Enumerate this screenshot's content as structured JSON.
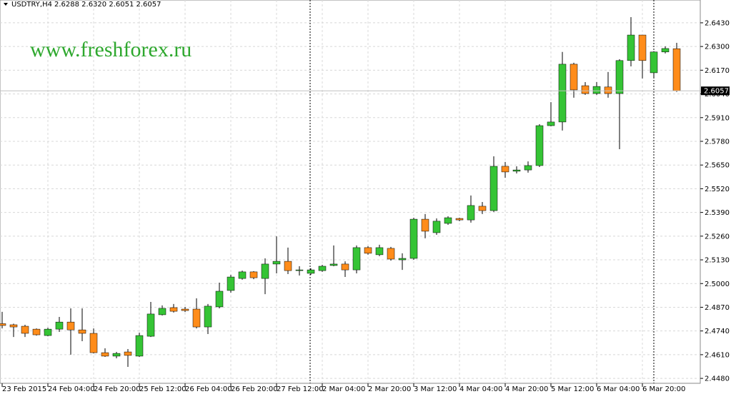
{
  "chart_data": {
    "type": "candlestick",
    "symbol": "USDTRY,H4",
    "quote": "2.6288 2.6320 2.6051 2.6057",
    "watermark": "www.freshforex.ru",
    "last_price": 2.6057,
    "up_color": "#35c435",
    "down_color": "#ff8c1a",
    "grid": true,
    "categories": [
      "23 Feb 2015",
      null,
      null,
      null,
      "24 Feb 04:00",
      null,
      null,
      null,
      "24 Feb 20:00",
      null,
      null,
      null,
      "25 Feb 12:00",
      null,
      null,
      null,
      "26 Feb 04:00",
      null,
      null,
      null,
      "26 Feb 20:00",
      null,
      null,
      null,
      "27 Feb 12:00",
      null,
      null,
      null,
      "2 Mar 04:00",
      null,
      null,
      null,
      "2 Mar 20:00",
      null,
      null,
      null,
      "3 Mar 12:00",
      null,
      null,
      null,
      "4 Mar 04:00",
      null,
      null,
      null,
      "4 Mar 20:00",
      null,
      null,
      null,
      "5 Mar 12:00",
      null,
      null,
      null,
      "6 Mar 04:00",
      null,
      null,
      null,
      "6 Mar 20:00",
      null,
      null,
      null
    ],
    "open": [
      2.478,
      2.4774,
      2.4766,
      2.475,
      2.4715,
      2.475,
      2.4789,
      2.4746,
      2.4727,
      2.4621,
      2.4602,
      2.4625,
      2.4602,
      2.4711,
      2.4829,
      2.4868,
      2.486,
      2.486,
      2.4762,
      2.4872,
      2.4962,
      2.5028,
      2.5064,
      2.5028,
      2.5107,
      2.5122,
      2.5071,
      2.5056,
      2.5071,
      2.5099,
      2.5107,
      2.5075,
      2.5197,
      2.5158,
      2.5193,
      2.513,
      2.5138,
      2.5353,
      2.5279,
      2.533,
      2.5357,
      2.5349,
      2.5424,
      2.54,
      2.5643,
      2.5616,
      2.5623,
      2.5647,
      2.5866,
      2.5886,
      2.6203,
      2.6085,
      2.6042,
      2.6078,
      2.6042,
      2.6223,
      2.6363,
      2.6156,
      2.627,
      2.6288
    ],
    "high": [
      2.4845,
      2.478,
      2.4774,
      2.4754,
      2.4758,
      2.4817,
      2.4864,
      2.4864,
      2.4754,
      2.4645,
      2.4625,
      2.4641,
      2.4731,
      2.4899,
      2.488,
      2.4888,
      2.4872,
      2.4919,
      2.4888,
      2.5005,
      2.5048,
      2.5071,
      2.5068,
      2.5138,
      2.5259,
      2.5197,
      2.5095,
      2.5083,
      2.5103,
      2.5209,
      2.5122,
      2.5209,
      2.5205,
      2.5213,
      2.5201,
      2.5166,
      2.5361,
      2.5381,
      2.5357,
      2.5369,
      2.5361,
      2.5483,
      2.5447,
      2.5698,
      2.5667,
      2.5643,
      2.567,
      2.5874,
      2.5995,
      2.627,
      2.6211,
      2.6105,
      2.6105,
      2.616,
      2.623,
      2.6461,
      2.6363,
      2.6274,
      2.6301,
      2.632
    ],
    "low": [
      2.4754,
      2.4707,
      2.4707,
      2.4715,
      2.4711,
      2.4735,
      2.461,
      2.4684,
      2.4617,
      2.4598,
      2.459,
      2.4543,
      2.4598,
      2.4707,
      2.4825,
      2.4841,
      2.4844,
      2.4754,
      2.4723,
      2.4864,
      2.495,
      2.5021,
      2.5024,
      2.4942,
      2.5056,
      2.5052,
      2.5044,
      2.5048,
      2.5064,
      2.5095,
      2.5036,
      2.5056,
      2.5158,
      2.515,
      2.5126,
      2.5075,
      2.513,
      2.5248,
      2.5267,
      2.5322,
      2.5342,
      2.5334,
      2.5381,
      2.5393,
      2.558,
      2.5604,
      2.5608,
      2.5639,
      2.5862,
      2.5839,
      2.6019,
      2.6035,
      2.6035,
      2.6019,
      2.5737,
      2.6191,
      2.6125,
      2.6132,
      2.6262,
      2.6051
    ],
    "close": [
      2.477,
      2.4762,
      2.4727,
      2.4719,
      2.475,
      2.4789,
      2.4746,
      2.4727,
      2.4621,
      2.4602,
      2.4617,
      2.4606,
      2.4715,
      2.4833,
      2.4864,
      2.4848,
      2.4852,
      2.4762,
      2.4876,
      2.4958,
      2.5036,
      2.5064,
      2.5032,
      2.5107,
      2.5122,
      2.5071,
      2.5075,
      2.5075,
      2.5095,
      2.5107,
      2.5075,
      2.5197,
      2.5166,
      2.5197,
      2.5134,
      2.5138,
      2.5353,
      2.5287,
      2.5342,
      2.5361,
      2.5349,
      2.5428,
      2.54,
      2.5643,
      2.5612,
      2.5623,
      2.5647,
      2.5866,
      2.5886,
      2.6203,
      2.6062,
      2.6042,
      2.6081,
      2.6042,
      2.6223,
      2.6363,
      2.6223,
      2.627,
      2.6289,
      2.6057
    ],
    "ylim": [
      2.4453,
      2.6555
    ],
    "yticks": [
      {
        "value": 2.448,
        "label": "2.4480"
      },
      {
        "value": 2.461,
        "label": "2.4610"
      },
      {
        "value": 2.474,
        "label": "2.4740"
      },
      {
        "value": 2.487,
        "label": "2.4870"
      },
      {
        "value": 2.5,
        "label": "2.5000"
      },
      {
        "value": 2.513,
        "label": "2.5130"
      },
      {
        "value": 2.526,
        "label": "2.5260"
      },
      {
        "value": 2.539,
        "label": "2.5390"
      },
      {
        "value": 2.552,
        "label": "2.5520"
      },
      {
        "value": 2.565,
        "label": "2.5650"
      },
      {
        "value": 2.578,
        "label": "2.5780"
      },
      {
        "value": 2.591,
        "label": "2.5910"
      },
      {
        "value": 2.604,
        "label": "2.6040"
      },
      {
        "value": 2.617,
        "label": "2.6170"
      },
      {
        "value": 2.63,
        "label": "2.6300"
      },
      {
        "value": 2.643,
        "label": "2.6430"
      }
    ]
  }
}
